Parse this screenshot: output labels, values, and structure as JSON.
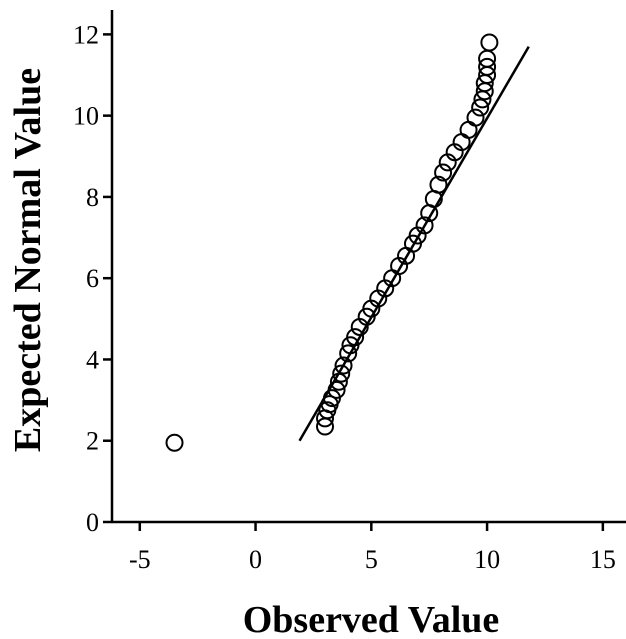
{
  "chart_data": {
    "type": "scatter",
    "title": "",
    "xlabel": "Observed Value",
    "ylabel": "Expected Normal Value",
    "xlim": [
      -6.2,
      16.0
    ],
    "ylim": [
      0,
      12.6
    ],
    "x_ticks": [
      -5,
      0,
      5,
      10,
      15
    ],
    "x_tick_labels": [
      "-5",
      "0",
      "5",
      "10",
      "15"
    ],
    "y_ticks": [
      0,
      2,
      4,
      6,
      8,
      10,
      12
    ],
    "y_tick_labels": [
      "0",
      "2",
      "4",
      "6",
      "8",
      "10",
      "12"
    ],
    "grid": false,
    "legend": "none",
    "marker": "open-circle",
    "colors": {
      "points": "#000000",
      "line": "#000000"
    },
    "reference_line": {
      "x": [
        1.9,
        11.8
      ],
      "y": [
        2.0,
        11.7
      ]
    },
    "points": {
      "x": [
        -3.5,
        3.0,
        3.0,
        3.1,
        3.2,
        3.3,
        3.5,
        3.6,
        3.7,
        3.8,
        4.0,
        4.1,
        4.3,
        4.5,
        4.8,
        5.0,
        5.3,
        5.6,
        5.9,
        6.2,
        6.5,
        6.8,
        7.0,
        7.3,
        7.5,
        7.7,
        7.9,
        8.1,
        8.3,
        8.6,
        8.9,
        9.2,
        9.5,
        9.7,
        9.8,
        9.9,
        9.9,
        10.0,
        10.0,
        10.0,
        10.1
      ],
      "y": [
        1.95,
        2.35,
        2.55,
        2.75,
        2.9,
        3.05,
        3.25,
        3.45,
        3.65,
        3.85,
        4.15,
        4.35,
        4.55,
        4.8,
        5.05,
        5.25,
        5.5,
        5.75,
        6.0,
        6.3,
        6.55,
        6.85,
        7.05,
        7.3,
        7.6,
        7.95,
        8.3,
        8.6,
        8.85,
        9.1,
        9.35,
        9.65,
        9.95,
        10.2,
        10.4,
        10.6,
        10.8,
        11.0,
        11.2,
        11.4,
        11.8
      ]
    }
  }
}
